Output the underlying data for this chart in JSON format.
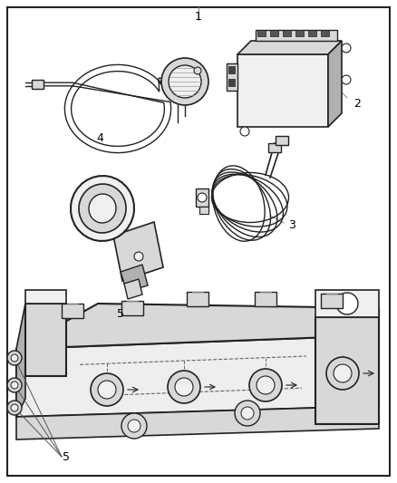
{
  "background_color": "#ffffff",
  "border_color": "#111111",
  "label_color": "#000000",
  "fig_width": 4.38,
  "fig_height": 5.33,
  "dpi": 100,
  "line_color": "#222222",
  "fill_light": "#f0f0f0",
  "fill_mid": "#d8d8d8",
  "fill_dark": "#b0b0b0"
}
